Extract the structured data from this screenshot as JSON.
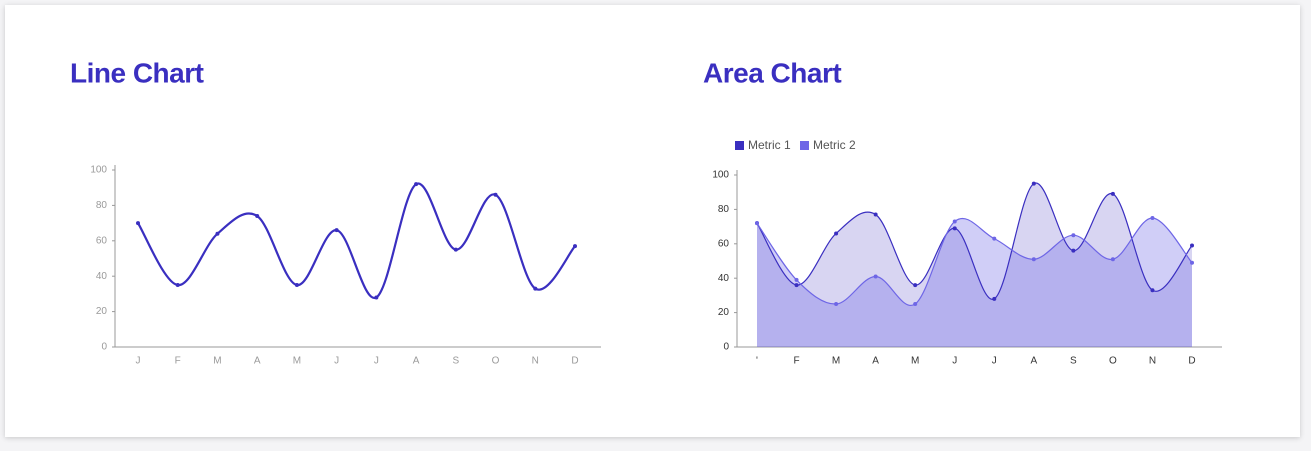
{
  "chart_data": [
    {
      "type": "line",
      "title": "Line Chart",
      "color": "#3a2fc0",
      "categories": [
        "J",
        "F",
        "M",
        "A",
        "M",
        "J",
        "J",
        "A",
        "S",
        "O",
        "N",
        "D"
      ],
      "values": [
        70,
        35,
        64,
        74,
        35,
        66,
        28,
        92,
        55,
        86,
        33,
        57
      ],
      "ylim": [
        0,
        100
      ],
      "yticks": [
        0,
        20,
        40,
        60,
        80,
        100
      ]
    },
    {
      "type": "area",
      "title": "Area Chart",
      "categories": [
        "'",
        "F",
        "M",
        "A",
        "M",
        "J",
        "J",
        "A",
        "S",
        "O",
        "N",
        "D"
      ],
      "series": [
        {
          "name": "Metric 1",
          "color": "#3a2fc0",
          "values": [
            72,
            36,
            66,
            77,
            36,
            69,
            28,
            95,
            56,
            89,
            33,
            59
          ]
        },
        {
          "name": "Metric 2",
          "color": "#6e66e6",
          "values": [
            72,
            39,
            25,
            41,
            25,
            73,
            63,
            51,
            65,
            51,
            75,
            49
          ]
        }
      ],
      "ylim": [
        0,
        100
      ],
      "yticks": [
        0,
        20,
        40,
        60,
        80,
        100
      ]
    }
  ]
}
